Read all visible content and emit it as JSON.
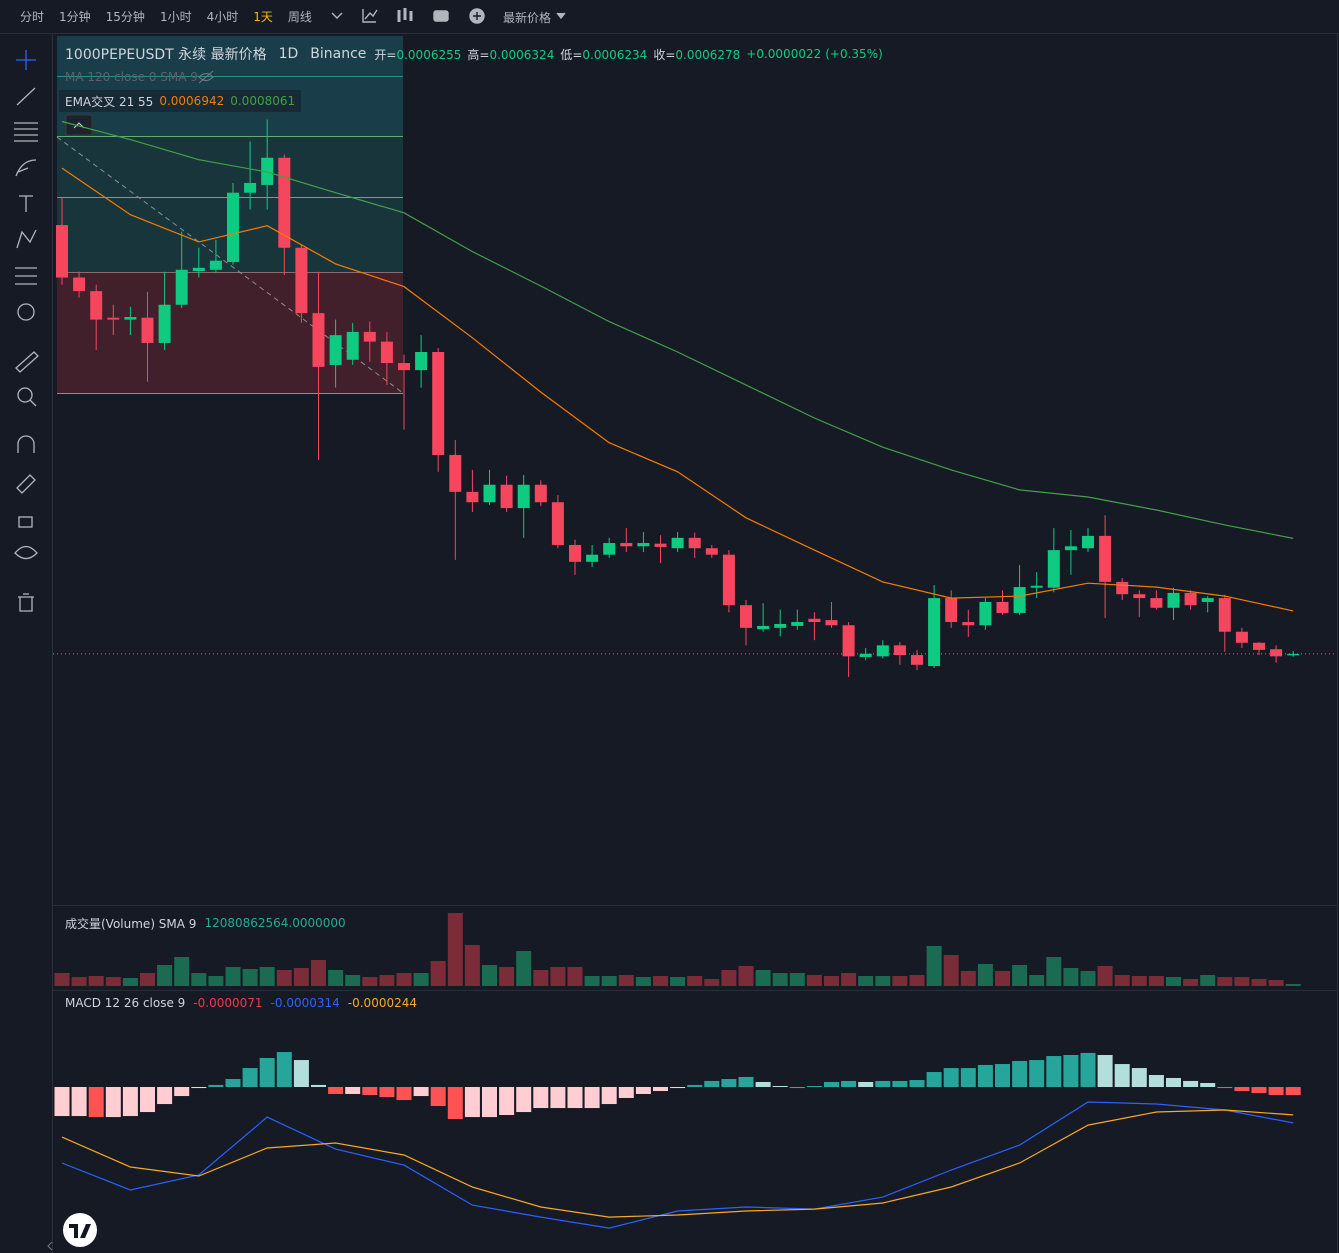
{
  "toolbar": {
    "intervals": [
      "分时",
      "1分钟",
      "15分钟",
      "1小时",
      "4小时",
      "1天",
      "周线"
    ],
    "active_index": 5,
    "price_type": "最新价格"
  },
  "chart_data": {
    "type": "candlestick",
    "title": "1000PEPEUSDT 永续 最新价格",
    "interval": "1D",
    "exchange": "Binance",
    "ohlc_labels": [
      "开=",
      "高=",
      "低=",
      "收="
    ],
    "change": "+0.0000022",
    "change_pct": "(+0.35%)",
    "hidden_indicator": "MA 120 close 0 SMA 9",
    "ema_label": "EMA交叉 21 55",
    "up_color": "#0ecb81",
    "down_color": "#f6465d",
    "ylim": [
      0.00024,
      0.001582
    ],
    "candles": {
      "open": [
        0.00129,
        0.001209,
        0.001188,
        0.001147,
        0.001144,
        0.001147,
        0.001108,
        0.001167,
        0.001219,
        0.001221,
        0.001233,
        0.00134,
        0.001352,
        0.001394,
        0.001255,
        0.001154,
        0.001074,
        0.001082,
        0.001125,
        0.00111,
        0.001077,
        0.001066,
        0.001094,
        0.000935,
        0.000878,
        0.000862,
        0.000889,
        0.000853,
        0.000889,
        0.000862,
        0.000796,
        0.00077,
        0.000781,
        0.000799,
        0.000794,
        0.000798,
        0.000791,
        0.000807,
        0.000791,
        0.000781,
        0.000703,
        0.000666,
        0.000668,
        0.000671,
        0.000682,
        0.00068,
        0.000672,
        0.000623,
        0.000624,
        0.000641,
        0.000626,
        0.000609,
        0.000714,
        0.000677,
        0.000672,
        0.000708,
        0.000691,
        0.00073,
        0.00073,
        0.000788,
        0.000791,
        0.00081,
        0.000739,
        0.00072,
        0.000714,
        0.000699,
        0.000722,
        0.000708,
        0.000714,
        0.000662,
        0.000645,
        0.000635,
        0.0006255
      ],
      "high": [
        0.001332,
        0.001218,
        0.001198,
        0.001167,
        0.001164,
        0.001187,
        0.001218,
        0.00128,
        0.001255,
        0.001267,
        0.001355,
        0.001419,
        0.001453,
        0.001399,
        0.00126,
        0.001218,
        0.001144,
        0.001139,
        0.001141,
        0.001125,
        0.00109,
        0.00112,
        0.0011,
        0.000958,
        0.000912,
        0.000912,
        0.000903,
        0.000904,
        0.000896,
        0.000873,
        0.000804,
        0.000796,
        0.000807,
        0.000822,
        0.000816,
        0.000811,
        0.000816,
        0.000815,
        0.000796,
        0.000788,
        0.000711,
        0.000706,
        0.000696,
        0.000696,
        0.000692,
        0.000708,
        0.000677,
        0.000637,
        0.000649,
        0.000646,
        0.000634,
        0.000734,
        0.000726,
        0.000696,
        0.000714,
        0.000726,
        0.000765,
        0.000754,
        0.000822,
        0.000819,
        0.000822,
        0.000842,
        0.000745,
        0.000726,
        0.000726,
        0.00073,
        0.000726,
        0.000717,
        0.000719,
        0.000668,
        0.000646,
        0.000641,
        0.0006324
      ],
      "low": [
        0.001198,
        0.001178,
        0.001097,
        0.00112,
        0.00112,
        0.001048,
        0.001097,
        0.001162,
        0.001209,
        0.001216,
        0.001229,
        0.001314,
        0.001314,
        0.001213,
        0.001139,
        0.000927,
        0.001039,
        0.001074,
        0.001079,
        0.001043,
        0.000974,
        0.001039,
        0.000909,
        0.000773,
        0.000847,
        0.000858,
        0.000847,
        0.000807,
        0.000856,
        0.000791,
        0.00075,
        0.000762,
        0.000776,
        0.000785,
        0.000785,
        0.000768,
        0.000785,
        0.000776,
        0.000776,
        0.000692,
        0.000641,
        0.000662,
        0.000655,
        0.000665,
        0.000649,
        0.000668,
        0.000592,
        0.000618,
        0.000621,
        0.000611,
        0.000603,
        0.000606,
        0.000668,
        0.000654,
        0.000665,
        0.000688,
        0.000688,
        0.000714,
        0.000723,
        0.00075,
        0.000785,
        0.000683,
        0.000711,
        0.000685,
        0.000696,
        0.00068,
        0.000696,
        0.000692,
        0.000631,
        0.000637,
        0.000626,
        0.000614,
        0.0006234
      ],
      "close": [
        0.001209,
        0.001188,
        0.001144,
        0.001144,
        0.001148,
        0.001108,
        0.001167,
        0.001221,
        0.001224,
        0.001235,
        0.00134,
        0.001355,
        0.001394,
        0.001255,
        0.001154,
        0.001071,
        0.00112,
        0.001125,
        0.00111,
        0.001077,
        0.001066,
        0.001094,
        0.000935,
        0.000878,
        0.000862,
        0.000889,
        0.000853,
        0.000889,
        0.000862,
        0.000796,
        0.00077,
        0.000781,
        0.000799,
        0.000794,
        0.000799,
        0.000793,
        0.000807,
        0.000791,
        0.000781,
        0.000703,
        0.000668,
        0.000671,
        0.000674,
        0.000677,
        0.000677,
        0.000672,
        0.000624,
        0.000628,
        0.000641,
        0.000626,
        0.000611,
        0.000714,
        0.000677,
        0.000672,
        0.000708,
        0.000691,
        0.000731,
        0.000733,
        0.000788,
        0.000794,
        0.00081,
        0.000739,
        0.00072,
        0.000714,
        0.000699,
        0.000722,
        0.000703,
        0.000714,
        0.000662,
        0.000645,
        0.000634,
        0.000624,
        0.0006278
      ]
    },
    "line_index": [
      0,
      4,
      8,
      12,
      16,
      20,
      24,
      28,
      32,
      36,
      40,
      44,
      48,
      52,
      56,
      60,
      64,
      68,
      72
    ],
    "ema": [
      {
        "color": "#f57c00",
        "values": [
          0.001378,
          0.001306,
          0.001264,
          0.001289,
          0.00123,
          0.001195,
          0.001116,
          0.001032,
          0.000954,
          0.000909,
          0.000838,
          0.000788,
          0.000739,
          0.000714,
          0.000717,
          0.000737,
          0.000731,
          0.000717,
          0.0006942
        ]
      },
      {
        "color": "#43a047",
        "values": [
          0.00145,
          0.001422,
          0.001391,
          0.001372,
          0.00134,
          0.001309,
          0.001249,
          0.001196,
          0.001141,
          0.001094,
          0.001043,
          0.000992,
          0.000947,
          0.000912,
          0.000881,
          0.00087,
          0.00085,
          0.000827,
          0.0008061
        ]
      }
    ],
    "volume": {
      "title": "成交量(Volume) SMA 9",
      "sma": "12080862564.0000000",
      "ylim": [
        0,
        81000000000.0
      ],
      "colors": [
        "#1b6b52",
        "#7a2c38"
      ],
      "values": [
        13000000000.0,
        9000000000.0,
        10000000000.0,
        9000000000.0,
        8000000000.0,
        13000000000.0,
        21000000000.0,
        29000000000.0,
        13000000000.0,
        10000000000.0,
        19000000000.0,
        17000000000.0,
        19000000000.0,
        16000000000.0,
        18000000000.0,
        26000000000.0,
        16000000000.0,
        11000000000.0,
        9000000000.0,
        11000000000.0,
        13000000000.0,
        13000000000.0,
        25000000000.0,
        73000000000.0,
        41000000000.0,
        21000000000.0,
        19000000000.0,
        35000000000.0,
        16000000000.0,
        19000000000.0,
        19000000000.0,
        10000000000.0,
        10000000000.0,
        11000000000.0,
        9000000000.0,
        10000000000.0,
        9000000000.0,
        10000000000.0,
        7000000000.0,
        16000000000.0,
        20000000000.0,
        16000000000.0,
        13000000000.0,
        13000000000.0,
        11000000000.0,
        10000000000.0,
        13000000000.0,
        10000000000.0,
        10000000000.0,
        10000000000.0,
        11000000000.0,
        40000000000.0,
        31000000000.0,
        15000000000.0,
        22000000000.0,
        15000000000.0,
        21000000000.0,
        11000000000.0,
        29000000000.0,
        18000000000.0,
        15000000000.0,
        20000000000.0,
        11000000000.0,
        10000000000.0,
        10000000000.0,
        9000000000.0,
        7000000000.0,
        11000000000.0,
        9000000000.0,
        9000000000.0,
        7000000000.0,
        6000000000.0,
        2000000000.0
      ]
    },
    "macd": {
      "title": "MACD 12 26 close 9",
      "ylim": [
        -0.0001426,
        8.05e-05
      ],
      "histogram_color": "#f23645",
      "histogram_colors": [
        "#26a69a",
        "#b2dfdb",
        "#ffcdd2",
        "#ff5252"
      ],
      "histogram": [
        -2.54e-05,
        -2.54e-05,
        -2.63e-05,
        -2.63e-05,
        -2.54e-05,
        -2.19e-05,
        -1.49e-05,
        -7.9e-06,
        -9e-07,
        1.8e-06,
        7e-06,
        1.66e-05,
        2.54e-05,
        3.06e-05,
        2.36e-05,
        1.8e-06,
        -6.1e-06,
        -6.1e-06,
        -7e-06,
        -8.8e-06,
        -1.14e-05,
        -7.9e-06,
        -1.66e-05,
        -2.8e-05,
        -2.63e-05,
        -2.63e-05,
        -2.45e-05,
        -2.19e-05,
        -1.84e-05,
        -1.84e-05,
        -1.84e-05,
        -1.84e-05,
        -1.49e-05,
        -9.6e-06,
        -6.1e-06,
        -3.5e-06,
        -9e-07,
        1.8e-06,
        5.3e-06,
        7e-06,
        8.8e-06,
        4.4e-06,
        9e-07,
        -9e-07,
        9e-07,
        4.4e-06,
        5.3e-06,
        4.4e-06,
        5.3e-06,
        5.3e-06,
        6.1e-06,
        1.31e-05,
        1.66e-05,
        1.66e-05,
        1.93e-05,
        2.01e-05,
        2.28e-05,
        2.36e-05,
        2.71e-05,
        2.8e-05,
        2.98e-05,
        2.8e-05,
        2.01e-05,
        1.66e-05,
        1.05e-05,
        7.9e-06,
        5.3e-06,
        3.5e-06,
        -9e-07,
        -3.5e-06,
        -5.3e-06,
        -7e-06,
        -7.1e-06
      ],
      "lines": [
        {
          "color": "#2962ff",
          "values": [
            -6.65e-05,
            -9.01e-05,
            -7.7e-05,
            -2.63e-05,
            -5.43e-05,
            -6.83e-05,
            -0.0001033,
            -0.0001138,
            -0.0001234,
            -0.0001085,
            -0.000105,
            -0.0001068,
            -9.63e-05,
            -7.26e-05,
            -5.08e-05,
            -1.31e-05,
            -1.49e-05,
            -2.01e-05,
            -3.14e-05
          ]
        },
        {
          "color": "#f9a825",
          "values": [
            -4.38e-05,
            -7e-05,
            -7.79e-05,
            -5.34e-05,
            -4.9e-05,
            -5.95e-05,
            -8.75e-05,
            -0.000105,
            -0.0001138,
            -0.000112,
            -0.0001085,
            -0.0001068,
            -0.0001015,
            -8.75e-05,
            -6.65e-05,
            -3.33e-05,
            -2.19e-05,
            -2.01e-05,
            -2.44e-05
          ]
        }
      ]
    }
  }
}
